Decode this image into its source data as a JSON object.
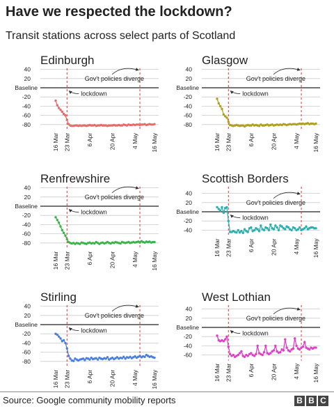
{
  "title": "Have we respected the lockdown?",
  "subtitle": "Transit stations across select parts of Scotland",
  "source": "Source: Google community mobility reports",
  "logo": [
    "B",
    "B",
    "C"
  ],
  "chart_data": [
    {
      "type": "line",
      "title": "Edinburgh",
      "color": "#e86b6b",
      "ylim": [
        -90,
        45
      ],
      "yticks": [
        40,
        20,
        "Baseline",
        -20,
        -40,
        -60,
        -80
      ],
      "x_tick_labels": [
        "16 Mar",
        "23 Mar",
        "6 Apr",
        "20 Apr",
        "4 May",
        "16 May"
      ],
      "x_tick_days": [
        0,
        7,
        21,
        35,
        49,
        61
      ],
      "x_days": [
        0,
        1,
        2,
        3,
        4,
        5,
        6,
        7,
        8,
        9,
        10,
        11,
        12,
        13,
        14,
        15,
        16,
        17,
        18,
        19,
        20,
        21,
        22,
        23,
        24,
        25,
        26,
        27,
        28,
        29,
        30,
        31,
        32,
        33,
        34,
        35,
        36,
        37,
        38,
        39,
        40,
        41,
        42,
        43,
        44,
        45,
        46,
        47,
        48,
        49,
        50,
        51,
        52,
        53,
        54,
        55,
        56,
        57,
        58,
        59,
        60,
        61
      ],
      "values": [
        -28,
        -38,
        -44,
        -48,
        -52,
        -57,
        -60,
        -70,
        -79,
        -82,
        -83,
        -83,
        -82,
        -82,
        -83,
        -82,
        -83,
        -82,
        -82,
        -83,
        -82,
        -81,
        -82,
        -82,
        -81,
        -83,
        -82,
        -82,
        -81,
        -82,
        -82,
        -82,
        -83,
        -82,
        -82,
        -82,
        -81,
        -82,
        -82,
        -81,
        -82,
        -82,
        -80,
        -81,
        -82,
        -80,
        -81,
        -81,
        -80,
        -81,
        -80,
        -80,
        -81,
        -80,
        -80,
        -79,
        -81,
        -80,
        -79,
        -80,
        -80,
        -79
      ],
      "annotations": {
        "lockdown": "lockdown",
        "policies": "Gov't policies diverge"
      },
      "lockdown_day": 7,
      "policies_day": 52
    },
    {
      "type": "line",
      "title": "Glasgow",
      "color": "#b0a020",
      "ylim": [
        -90,
        45
      ],
      "yticks": [
        40,
        20,
        "Baseline",
        -20,
        -40,
        -60,
        -80
      ],
      "x_tick_labels": [
        "16 Mar",
        "23 Mar",
        "6 Apr",
        "20 Apr",
        "4 May",
        "16 May"
      ],
      "x_tick_days": [
        0,
        7,
        21,
        35,
        49,
        61
      ],
      "x_days": [
        0,
        1,
        2,
        3,
        4,
        5,
        6,
        7,
        8,
        9,
        10,
        11,
        12,
        13,
        14,
        15,
        16,
        17,
        18,
        19,
        20,
        21,
        22,
        23,
        24,
        25,
        26,
        27,
        28,
        29,
        30,
        31,
        32,
        33,
        34,
        35,
        36,
        37,
        38,
        39,
        40,
        41,
        42,
        43,
        44,
        45,
        46,
        47,
        48,
        49,
        50,
        51,
        52,
        53,
        54,
        55,
        56,
        57,
        58,
        59,
        60,
        61
      ],
      "values": [
        -24,
        -34,
        -40,
        -46,
        -58,
        -62,
        -65,
        -74,
        -81,
        -82,
        -83,
        -82,
        -81,
        -82,
        -83,
        -82,
        -82,
        -84,
        -82,
        -81,
        -82,
        -82,
        -80,
        -82,
        -81,
        -82,
        -83,
        -80,
        -82,
        -82,
        -81,
        -80,
        -82,
        -81,
        -80,
        -82,
        -81,
        -80,
        -81,
        -80,
        -81,
        -79,
        -80,
        -81,
        -80,
        -79,
        -80,
        -79,
        -79,
        -80,
        -79,
        -78,
        -79,
        -78,
        -79,
        -78,
        -77,
        -79,
        -78,
        -78,
        -79,
        -78
      ],
      "annotations": {
        "lockdown": "lockdown",
        "policies": "Gov't policies diverge"
      },
      "lockdown_day": 7,
      "policies_day": 52
    },
    {
      "type": "line",
      "title": "Renfrewshire",
      "color": "#3bb54a",
      "ylim": [
        -90,
        45
      ],
      "yticks": [
        40,
        20,
        "Baseline",
        -20,
        -40,
        -60,
        -80
      ],
      "x_tick_labels": [
        "16 Mar",
        "23 Mar",
        "6 Apr",
        "20 Apr",
        "4 May",
        "16 May"
      ],
      "x_tick_days": [
        0,
        7,
        21,
        35,
        49,
        61
      ],
      "x_days": [
        0,
        1,
        2,
        3,
        4,
        5,
        6,
        7,
        8,
        9,
        10,
        11,
        12,
        13,
        14,
        15,
        16,
        17,
        18,
        19,
        20,
        21,
        22,
        23,
        24,
        25,
        26,
        27,
        28,
        29,
        30,
        31,
        32,
        33,
        34,
        35,
        36,
        37,
        38,
        39,
        40,
        41,
        42,
        43,
        44,
        45,
        46,
        47,
        48,
        49,
        50,
        51,
        52,
        53,
        54,
        55,
        56,
        57,
        58,
        59,
        60,
        61
      ],
      "values": [
        -24,
        -30,
        -36,
        -44,
        -52,
        -58,
        -64,
        -72,
        -78,
        -80,
        -81,
        -80,
        -82,
        -80,
        -81,
        -82,
        -79,
        -80,
        -81,
        -82,
        -80,
        -79,
        -81,
        -80,
        -81,
        -78,
        -80,
        -82,
        -80,
        -79,
        -81,
        -80,
        -78,
        -80,
        -81,
        -79,
        -80,
        -78,
        -79,
        -80,
        -81,
        -78,
        -79,
        -80,
        -79,
        -78,
        -80,
        -79,
        -78,
        -79,
        -78,
        -77,
        -79,
        -76,
        -78,
        -79,
        -77,
        -78,
        -77,
        -79,
        -78,
        -78
      ],
      "annotations": {
        "lockdown": "lockdown",
        "policies": "Gov't policies diverge"
      },
      "lockdown_day": 7,
      "policies_day": 52
    },
    {
      "type": "line",
      "title": "Scottish Borders",
      "color": "#29b0b0",
      "ylim": [
        -55,
        45
      ],
      "yticks": [
        40,
        20,
        "Baseline",
        -20,
        -40
      ],
      "x_tick_labels": [
        "16 Mar",
        "23 Mar",
        "6 Apr",
        "20 Apr",
        "4 May",
        "16 May"
      ],
      "x_tick_days": [
        0,
        7,
        21,
        35,
        49,
        61
      ],
      "x_days": [
        0,
        1,
        2,
        3,
        4,
        5,
        6,
        7,
        8,
        9,
        10,
        11,
        12,
        13,
        14,
        15,
        16,
        17,
        18,
        19,
        20,
        21,
        22,
        23,
        24,
        25,
        26,
        27,
        28,
        29,
        30,
        31,
        32,
        33,
        34,
        35,
        36,
        37,
        38,
        39,
        40,
        41,
        42,
        43,
        44,
        45,
        46,
        47,
        48,
        49,
        50,
        51,
        52,
        53,
        54,
        55,
        56,
        57,
        58,
        59,
        60,
        61
      ],
      "values": [
        10,
        6,
        2,
        10,
        -2,
        8,
        10,
        -20,
        -44,
        -44,
        -42,
        -44,
        -45,
        -40,
        -45,
        -42,
        -46,
        -38,
        -42,
        -44,
        -36,
        -34,
        -42,
        -40,
        -36,
        -38,
        -42,
        -30,
        -38,
        -40,
        -34,
        -36,
        -40,
        -28,
        -36,
        -38,
        -30,
        -34,
        -40,
        -30,
        -32,
        -36,
        -38,
        -32,
        -34,
        -38,
        -40,
        -34,
        -36,
        -40,
        -38,
        -34,
        -40,
        -38,
        -36,
        -32,
        -38,
        -36,
        -34,
        -34,
        -36,
        -36
      ],
      "annotations": {
        "lockdown": "lockdown",
        "policies": "Gov't policies diverge"
      },
      "lockdown_day": 7,
      "policies_day": 52
    },
    {
      "type": "line",
      "title": "Stirling",
      "color": "#4a7fe0",
      "ylim": [
        -90,
        45
      ],
      "yticks": [
        40,
        20,
        "Baseline",
        -20,
        -40,
        -60,
        -80
      ],
      "x_tick_labels": [
        "16 Mar",
        "23 Mar",
        "6 Apr",
        "20 Apr",
        "4 May",
        "16 May"
      ],
      "x_tick_days": [
        0,
        7,
        21,
        35,
        49,
        61
      ],
      "x_days": [
        0,
        1,
        2,
        3,
        4,
        5,
        6,
        7,
        8,
        9,
        10,
        11,
        12,
        13,
        14,
        15,
        16,
        17,
        18,
        19,
        20,
        21,
        22,
        23,
        24,
        25,
        26,
        27,
        28,
        29,
        30,
        31,
        32,
        33,
        34,
        35,
        36,
        37,
        38,
        39,
        40,
        41,
        42,
        43,
        44,
        45,
        46,
        47,
        48,
        49,
        50,
        51,
        52,
        53,
        54,
        55,
        56,
        57,
        58,
        59,
        60,
        61
      ],
      "values": [
        -20,
        -22,
        -26,
        -30,
        -36,
        -34,
        -40,
        -52,
        -68,
        -74,
        -78,
        -79,
        -74,
        -76,
        -78,
        -76,
        -75,
        -74,
        -77,
        -73,
        -74,
        -76,
        -72,
        -75,
        -74,
        -73,
        -76,
        -72,
        -74,
        -75,
        -73,
        -74,
        -71,
        -76,
        -74,
        -72,
        -75,
        -73,
        -71,
        -74,
        -72,
        -73,
        -70,
        -74,
        -71,
        -72,
        -70,
        -73,
        -71,
        -69,
        -72,
        -70,
        -68,
        -71,
        -69,
        -70,
        -66,
        -68,
        -70,
        -69,
        -71,
        -72
      ],
      "annotations": {
        "lockdown": "lockdown",
        "policies": "Gov't policies diverge"
      },
      "lockdown_day": 7,
      "policies_day": 52
    },
    {
      "type": "line",
      "title": "West Lothian",
      "color": "#e040c8",
      "ylim": [
        -75,
        45
      ],
      "yticks": [
        40,
        20,
        "Baseline",
        -20,
        -40,
        -60
      ],
      "x_tick_labels": [
        "16 Mar",
        "23 Mar",
        "6 Apr",
        "20 Apr",
        "4 May",
        "16 May"
      ],
      "x_tick_days": [
        0,
        7,
        21,
        35,
        49,
        61
      ],
      "x_days": [
        0,
        1,
        2,
        3,
        4,
        5,
        6,
        7,
        8,
        9,
        10,
        11,
        12,
        13,
        14,
        15,
        16,
        17,
        18,
        19,
        20,
        21,
        22,
        23,
        24,
        25,
        26,
        27,
        28,
        29,
        30,
        31,
        32,
        33,
        34,
        35,
        36,
        37,
        38,
        39,
        40,
        41,
        42,
        43,
        44,
        45,
        46,
        47,
        48,
        49,
        50,
        51,
        52,
        53,
        54,
        55,
        56,
        57,
        58,
        59,
        60,
        61
      ],
      "values": [
        -18,
        -28,
        -30,
        -28,
        -30,
        -26,
        -20,
        -42,
        -58,
        -62,
        -60,
        -64,
        -62,
        -60,
        -56,
        -52,
        -62,
        -64,
        -60,
        -62,
        -58,
        -56,
        -60,
        -62,
        -58,
        -40,
        -56,
        -58,
        -60,
        -54,
        -40,
        -56,
        -58,
        -56,
        -52,
        -50,
        -40,
        -52,
        -55,
        -54,
        -48,
        -50,
        -26,
        -44,
        -50,
        -52,
        -48,
        -46,
        -24,
        -40,
        -46,
        -48,
        -44,
        -42,
        -32,
        -44,
        -46,
        -48,
        -44,
        -46,
        -44,
        -44
      ],
      "annotations": {
        "lockdown": "lockdown",
        "policies": "Gov't policies diverge"
      },
      "lockdown_day": 7,
      "policies_day": 52
    }
  ]
}
